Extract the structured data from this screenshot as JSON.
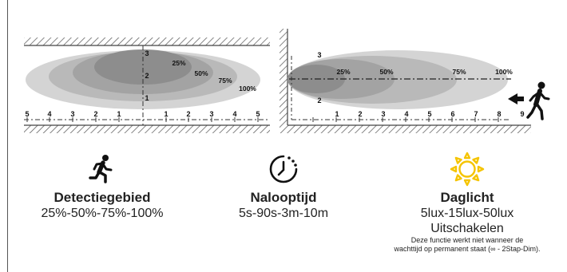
{
  "left_diagram": {
    "side_ticks": [
      "5",
      "4",
      "3",
      "2",
      "1",
      "1",
      "2",
      "3",
      "4",
      "5"
    ],
    "height_ticks": [
      "3",
      "2",
      "1"
    ],
    "zone_labels": [
      "25%",
      "50%",
      "75%",
      "100%"
    ]
  },
  "right_diagram": {
    "side_ticks": [
      "1",
      "2",
      "3",
      "4",
      "5",
      "6",
      "7",
      "8",
      "9"
    ],
    "height_ticks": [
      "3",
      "2"
    ],
    "zone_labels": [
      "25%",
      "50%",
      "75%",
      "100%"
    ]
  },
  "features": [
    {
      "icon": "running-person-icon",
      "title": "Detectiegebied",
      "value": "25%-50%-75%-100%"
    },
    {
      "icon": "timer-icon",
      "title": "Nalooptijd",
      "value": "5s-90s-3m-10m"
    },
    {
      "icon": "sun-icon",
      "title": "Daglicht",
      "value": "5lux-15lux-50lux",
      "value2": "Uitschakelen",
      "note_line1": "Deze functie werkt niet wanneer de",
      "note_line2": "wachttijd op permanent staat (∞ - 2Stap-Dim)."
    }
  ],
  "colors": {
    "accent_yellow": "#f5c400",
    "zone_dark": "#8a8a8a",
    "zone_light": "#d2d2d2"
  }
}
